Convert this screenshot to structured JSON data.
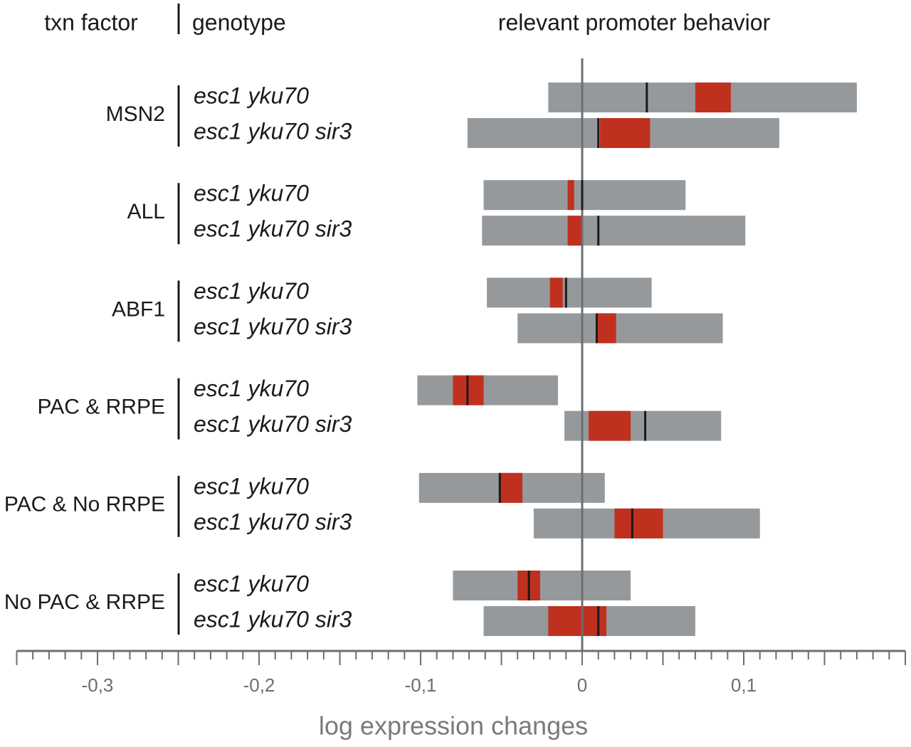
{
  "chart_data": {
    "type": "range-bar",
    "headers": {
      "factor": "txn factor",
      "genotype": "genotype",
      "behavior": "relevant promoter behavior"
    },
    "x_label": "log expression changes",
    "xlim": [
      -0.35,
      0.2
    ],
    "xticks": [
      {
        "value": -0.3,
        "label": "-0,3"
      },
      {
        "value": -0.2,
        "label": "-0,2"
      },
      {
        "value": -0.1,
        "label": "-0,1"
      },
      0,
      {
        "value": 0.1,
        "label": "0,1"
      }
    ],
    "xminor_step": 0.01,
    "range_color": "#96999c",
    "core_color": "#c0301f",
    "median_color": "#1a1a1a",
    "groups": [
      {
        "name": "MSN2",
        "rows": [
          {
            "genotype": "esc1 yku70",
            "low": -0.021,
            "high": 0.17,
            "core_low": 0.07,
            "core_high": 0.092,
            "median": 0.04
          },
          {
            "genotype": "esc1 yku70 sir3",
            "low": -0.071,
            "high": 0.122,
            "core_low": 0.011,
            "core_high": 0.042,
            "median": 0.01
          }
        ]
      },
      {
        "name": "ALL",
        "rows": [
          {
            "genotype": "esc1 yku70",
            "low": -0.061,
            "high": 0.064,
            "core_low": -0.009,
            "core_high": -0.005,
            "median": 0
          },
          {
            "genotype": "esc1 yku70 sir3",
            "low": -0.062,
            "high": 0.101,
            "core_low": -0.009,
            "core_high": 0,
            "median": 0.01
          }
        ]
      },
      {
        "name": "ABF1",
        "rows": [
          {
            "genotype": "esc1 yku70",
            "low": -0.059,
            "high": 0.043,
            "core_low": -0.02,
            "core_high": -0.012,
            "median": -0.01
          },
          {
            "genotype": "esc1 yku70 sir3",
            "low": -0.04,
            "high": 0.087,
            "core_low": 0.009,
            "core_high": 0.021,
            "median": 0.009
          }
        ]
      },
      {
        "name": "PAC & RRPE",
        "rows": [
          {
            "genotype": "esc1 yku70",
            "low": -0.102,
            "high": -0.015,
            "core_low": -0.08,
            "core_high": -0.061,
            "median": -0.071
          },
          {
            "genotype": "esc1 yku70 sir3",
            "low": -0.011,
            "high": 0.086,
            "core_low": 0.004,
            "core_high": 0.03,
            "median": 0.039
          }
        ]
      },
      {
        "name": "PAC & No RRPE",
        "rows": [
          {
            "genotype": "esc1 yku70",
            "low": -0.101,
            "high": 0.014,
            "core_low": -0.051,
            "core_high": -0.037,
            "median": -0.051
          },
          {
            "genotype": "esc1 yku70 sir3",
            "low": -0.03,
            "high": 0.11,
            "core_low": 0.02,
            "core_high": 0.05,
            "median": 0.031
          }
        ]
      },
      {
        "name": "No PAC & RRPE",
        "rows": [
          {
            "genotype": "esc1 yku70",
            "low": -0.08,
            "high": 0.03,
            "core_low": -0.04,
            "core_high": -0.026,
            "median": -0.033
          },
          {
            "genotype": "esc1 yku70 sir3",
            "low": -0.061,
            "high": 0.07,
            "core_low": -0.021,
            "core_high": 0.015,
            "median": 0.01
          }
        ]
      }
    ]
  }
}
